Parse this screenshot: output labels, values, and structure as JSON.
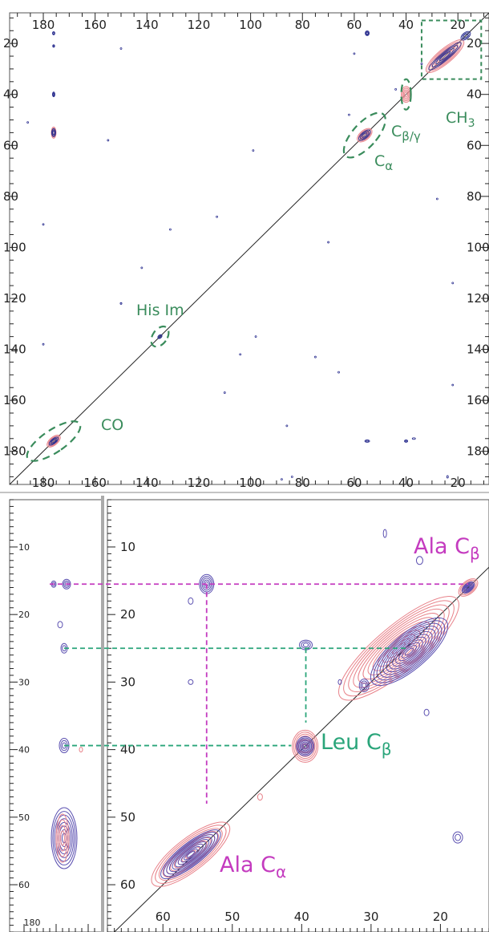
{
  "chart_data": [
    {
      "type": "contour",
      "panel": "top",
      "x_axis": {
        "range": [
          193,
          8
        ],
        "inverted": true,
        "ticks": [
          180,
          160,
          140,
          120,
          100,
          80,
          60,
          40,
          20
        ]
      },
      "y_axis": {
        "range": [
          8,
          193
        ],
        "inverted": true,
        "ticks": [
          20,
          40,
          60,
          80,
          100,
          120,
          140,
          160,
          180
        ]
      },
      "diagonal": true,
      "colors": {
        "spectrum_1": "#e8828a",
        "spectrum_2": "#2b2f8f",
        "annotation": "#3a8c5c",
        "axis": "#222222"
      },
      "annotations": [
        {
          "text": "His Im",
          "x": 134,
          "y": 132
        },
        {
          "text": "CO",
          "x": 164,
          "y": 178
        },
        {
          "text": "CH3",
          "x": 16,
          "y": 42
        },
        {
          "text": "Cβ/γ",
          "x": 38,
          "y": 48
        },
        {
          "text": "Cα",
          "x": 48,
          "y": 60
        }
      ],
      "regions": [
        {
          "label": "CH3",
          "shape": "rectangle",
          "x": [
            34,
            11
          ],
          "y": [
            11,
            34
          ]
        },
        {
          "label": "Cβ/γ",
          "shape": "ellipse",
          "cx": 40,
          "cy": 40
        },
        {
          "label": "Cα",
          "shape": "ellipse",
          "cx": 56,
          "cy": 56
        },
        {
          "label": "His Im",
          "shape": "ellipse",
          "cx": 135,
          "cy": 135
        },
        {
          "label": "CO",
          "shape": "ellipse",
          "cx": 176,
          "cy": 176
        }
      ]
    },
    {
      "type": "contour",
      "panel": "bottom-zoom",
      "x_axis": {
        "range": [
          68,
          13
        ],
        "inverted": true,
        "ticks": [
          60,
          50,
          40,
          30,
          20
        ]
      },
      "y_axis": {
        "range": [
          3,
          67
        ],
        "inverted": true,
        "ticks": [
          10,
          20,
          30,
          40,
          50,
          60
        ]
      },
      "side_panel": {
        "x_ticks": [
          180
        ],
        "y_ticks": [
          10,
          20,
          30,
          40,
          50,
          60
        ]
      },
      "diagonal": true,
      "colors": {
        "spectrum_1": "#e8828a",
        "spectrum_2": "#5a4fb0",
        "leu": "#2aa57a",
        "ala": "#c43bbf"
      },
      "annotations": [
        {
          "text": "Ala Cβ",
          "color": "ala"
        },
        {
          "text": "Leu Cβ",
          "color": "leu"
        },
        {
          "text": "Ala Cα",
          "color": "ala"
        }
      ],
      "connectivity_lines": [
        {
          "color": "ala",
          "horizontal_y": 15.5,
          "vertical_x": 53.7,
          "from": [
            15.5,
            53.7
          ]
        },
        {
          "color": "leu",
          "horizontal_y": 25,
          "vertical_x": 39.4,
          "from": [
            25,
            39.4
          ]
        },
        {
          "color": "leu",
          "horizontal_y": 39.4,
          "vertical_x": 39.4
        }
      ]
    }
  ]
}
